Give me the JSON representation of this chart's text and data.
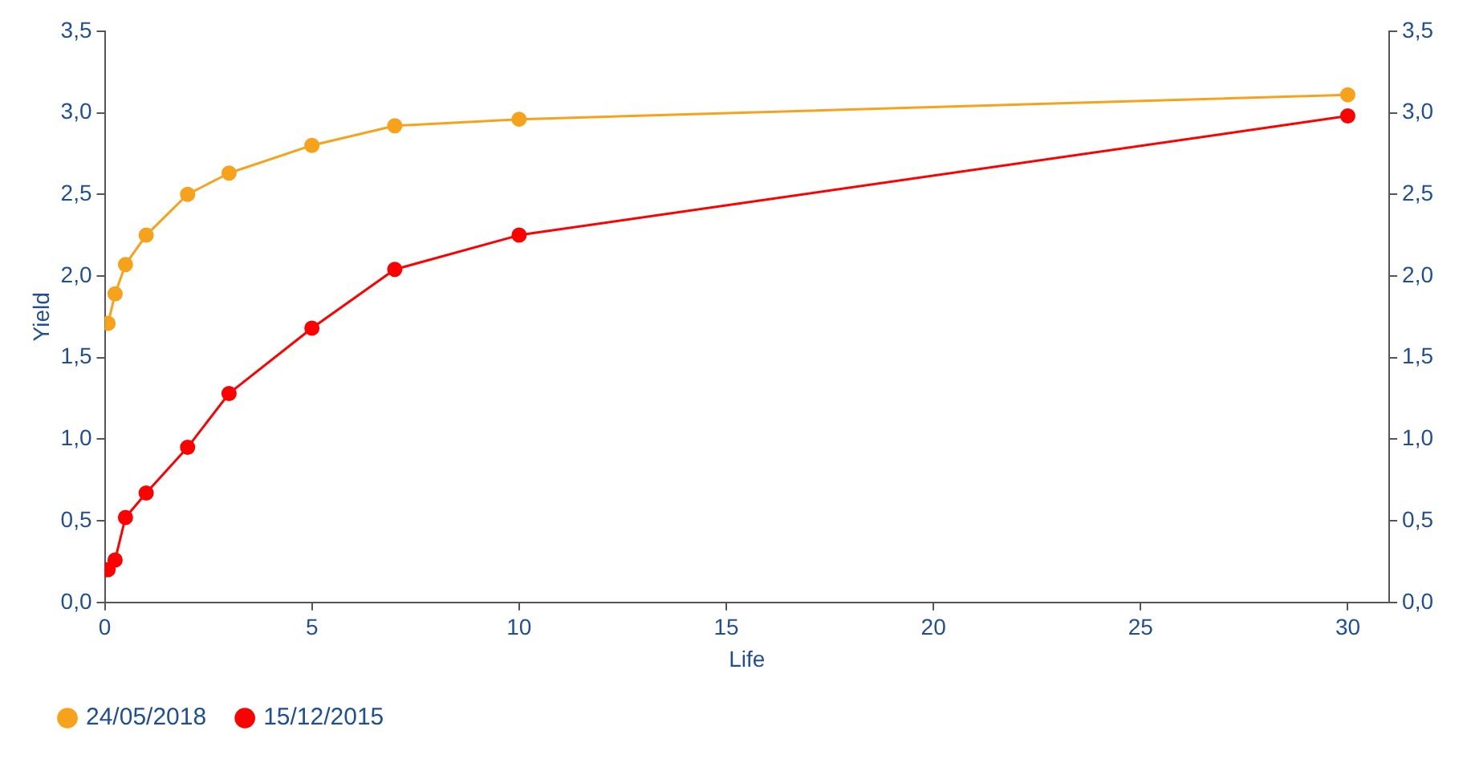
{
  "chart_data": {
    "type": "line",
    "xlabel": "Life",
    "ylabel": "Yield",
    "xlim": [
      0,
      31
    ],
    "xticks": [
      0,
      5,
      10,
      15,
      20,
      25,
      30
    ],
    "ylim": [
      0,
      3.5
    ],
    "yticks": [
      {
        "value": 0,
        "label": "0,0"
      },
      {
        "value": 0.5,
        "label": "0,5"
      },
      {
        "value": 1,
        "label": "1,0"
      },
      {
        "value": 1.5,
        "label": "1,5"
      },
      {
        "value": 2,
        "label": "2,0"
      },
      {
        "value": 2.5,
        "label": "2,5"
      },
      {
        "value": 3,
        "label": "3,0"
      },
      {
        "value": 3.5,
        "label": "3,5"
      }
    ],
    "y2lim": [
      0,
      3.5
    ],
    "y2ticks": [
      {
        "value": 0,
        "label": "0,0"
      },
      {
        "value": 0.5,
        "label": "0,5"
      },
      {
        "value": 1,
        "label": "1,0"
      },
      {
        "value": 1.5,
        "label": "1,5"
      },
      {
        "value": 2,
        "label": "2,0"
      },
      {
        "value": 2.5,
        "label": "2,5"
      },
      {
        "value": 3,
        "label": "3,0"
      },
      {
        "value": 3.5,
        "label": "3,5"
      }
    ],
    "x": [
      0.08,
      0.25,
      0.5,
      1,
      2,
      3,
      5,
      7,
      10,
      30
    ],
    "series": [
      {
        "name": "24/05/2018",
        "color": "#f7a21b",
        "values": [
          1.71,
          1.89,
          2.07,
          2.25,
          2.5,
          2.63,
          2.8,
          2.92,
          2.96,
          3.11
        ]
      },
      {
        "name": "15/12/2015",
        "color": "#ff0000",
        "values": [
          0.2,
          0.26,
          0.52,
          0.67,
          0.95,
          1.28,
          1.68,
          2.04,
          2.25,
          2.98
        ]
      }
    ],
    "marker": "circle",
    "line_style": "solid",
    "grid": false,
    "legend": "bottom left"
  }
}
